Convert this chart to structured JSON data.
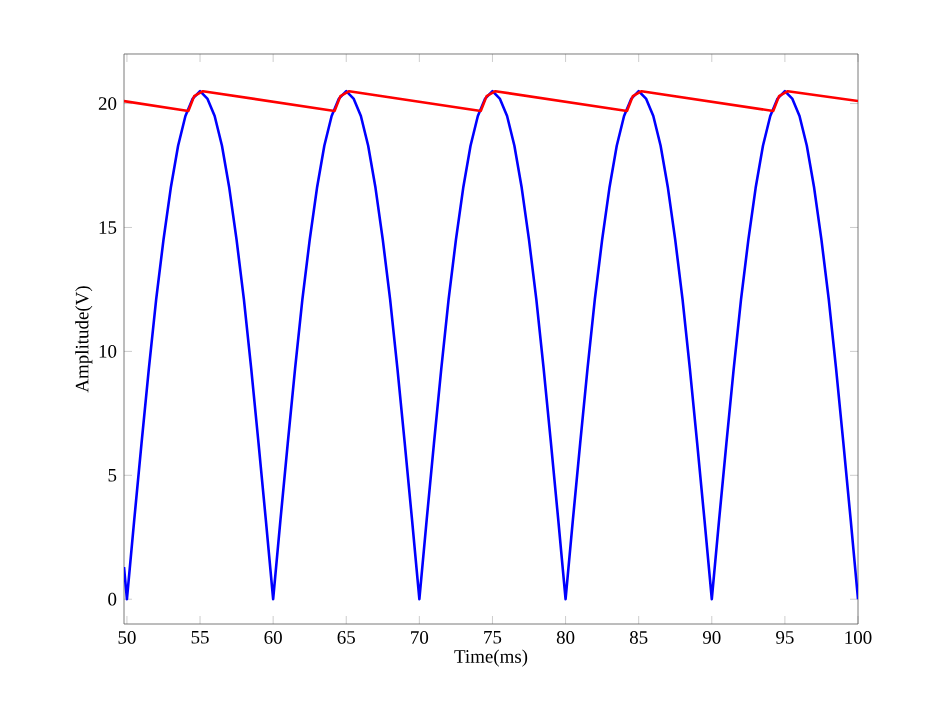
{
  "chart_data": {
    "type": "line",
    "xlabel": "Time(ms)",
    "ylabel": "Amplitude(V)",
    "xlim": [
      49.8,
      100
    ],
    "ylim": [
      -1,
      22
    ],
    "xticks": [
      50,
      55,
      60,
      65,
      70,
      75,
      80,
      85,
      90,
      95,
      100
    ],
    "yticks": [
      0,
      5,
      10,
      15,
      20
    ],
    "series": [
      {
        "color": "#0000ff",
        "x": [
          49.8,
          50,
          50.5,
          51,
          51.5,
          52,
          52.5,
          53,
          53.5,
          54,
          54.5,
          55,
          55.5,
          56,
          56.5,
          57,
          57.5,
          58,
          58.5,
          59,
          59.5,
          60,
          60.5,
          61,
          61.5,
          62,
          62.5,
          63,
          63.5,
          64,
          64.5,
          65,
          65.5,
          66,
          66.5,
          67,
          67.5,
          68,
          68.5,
          69,
          69.5,
          70,
          70.5,
          71,
          71.5,
          72,
          72.5,
          73,
          73.5,
          74,
          74.5,
          75,
          75.5,
          76,
          76.5,
          77,
          77.5,
          78,
          78.5,
          79,
          79.5,
          80,
          80.5,
          81,
          81.5,
          82,
          82.5,
          83,
          83.5,
          84,
          84.5,
          85,
          85.5,
          86,
          86.5,
          87,
          87.5,
          88,
          88.5,
          89,
          89.5,
          90,
          90.5,
          91,
          91.5,
          92,
          92.5,
          93,
          93.5,
          94,
          94.5,
          95,
          95.5,
          96,
          96.5,
          97,
          97.5,
          98,
          98.5,
          99,
          99.5,
          100
        ],
        "values": [
          1.3,
          0,
          3.2,
          6.3,
          9.3,
          12.1,
          14.5,
          16.6,
          18.3,
          19.5,
          20.2,
          20.5,
          20.2,
          19.5,
          18.3,
          16.6,
          14.5,
          12.1,
          9.3,
          6.3,
          3.2,
          0,
          3.2,
          6.3,
          9.3,
          12.1,
          14.5,
          16.6,
          18.3,
          19.5,
          20.2,
          20.5,
          20.2,
          19.5,
          18.3,
          16.6,
          14.5,
          12.1,
          9.3,
          6.3,
          3.2,
          0,
          3.2,
          6.3,
          9.3,
          12.1,
          14.5,
          16.6,
          18.3,
          19.5,
          20.2,
          20.5,
          20.2,
          19.5,
          18.3,
          16.6,
          14.5,
          12.1,
          9.3,
          6.3,
          3.2,
          0,
          3.2,
          6.3,
          9.3,
          12.1,
          14.5,
          16.6,
          18.3,
          19.5,
          20.2,
          20.5,
          20.2,
          19.5,
          18.3,
          16.6,
          14.5,
          12.1,
          9.3,
          6.3,
          3.2,
          0,
          3.2,
          6.3,
          9.3,
          12.1,
          14.5,
          16.6,
          18.3,
          19.5,
          20.2,
          20.5,
          20.2,
          19.5,
          18.3,
          16.6,
          14.5,
          12.1,
          9.3,
          6.3,
          3.2,
          0
        ]
      },
      {
        "color": "#ff0000",
        "x": [
          49.8,
          54.2,
          54.6,
          55.2,
          64.2,
          64.6,
          65.2,
          74.2,
          74.6,
          75.2,
          84.2,
          84.6,
          85.2,
          94.2,
          94.6,
          95.2,
          100
        ],
        "values": [
          20.1,
          19.7,
          20.3,
          20.5,
          19.7,
          20.3,
          20.5,
          19.7,
          20.3,
          20.5,
          19.7,
          20.3,
          20.5,
          19.7,
          20.3,
          20.5,
          20.1
        ]
      }
    ]
  }
}
